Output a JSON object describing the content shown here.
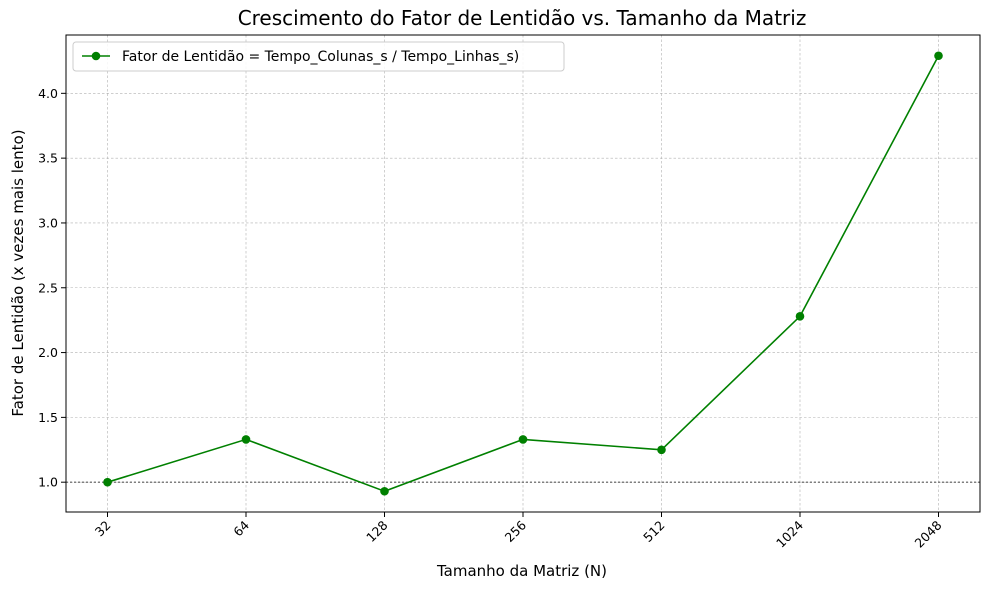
{
  "chart_data": {
    "type": "line",
    "title": "Crescimento do Fator de Lentidão vs. Tamanho da Matriz",
    "xlabel": "Tamanho da Matriz (N)",
    "ylabel": "Fator de Lentidão (x vezes mais lento)",
    "categories": [
      "32",
      "64",
      "128",
      "256",
      "512",
      "1024",
      "2048"
    ],
    "series": [
      {
        "name": "Fator de Lentidão = Tempo_Colunas_s / Tempo_Linhas_s)",
        "values": [
          1.0,
          1.33,
          0.93,
          1.33,
          1.25,
          2.28,
          4.29
        ],
        "color": "#008000",
        "marker": "circle"
      }
    ],
    "yticks": [
      "1.0",
      "1.5",
      "2.0",
      "2.5",
      "3.0",
      "3.5",
      "4.0"
    ],
    "ylim": [
      0.77,
      4.45
    ],
    "reference_line": {
      "y": 1.0,
      "style": "dotted",
      "color": "#808080"
    },
    "grid": true,
    "legend_position": "top-left",
    "xtick_rotation": 45
  }
}
